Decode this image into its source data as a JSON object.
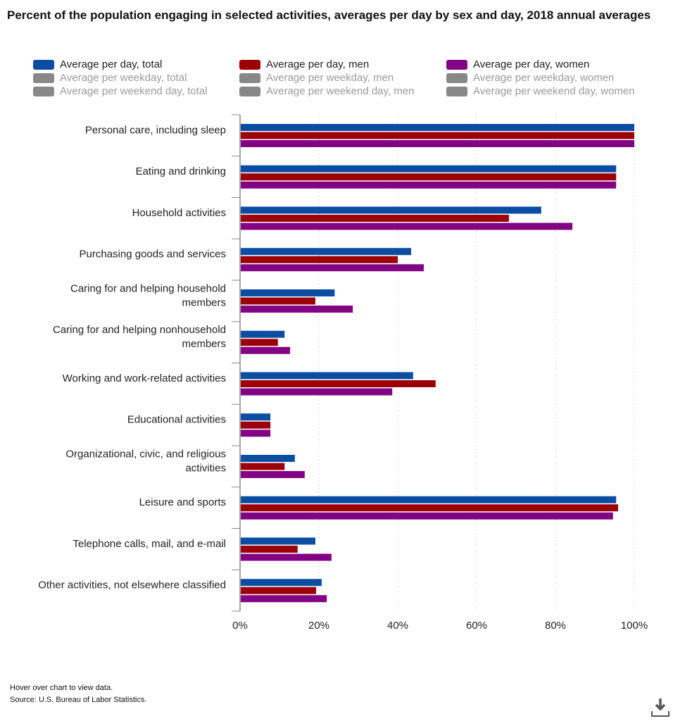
{
  "chart_data": {
    "type": "bar",
    "orientation": "horizontal",
    "title": "Percent of the population engaging in selected activities, averages per day by sex and day, 2018 annual averages",
    "categories": [
      "Personal care, including sleep",
      "Eating and drinking",
      "Household activities",
      "Purchasing goods and services",
      "Caring for and helping household members",
      "Caring for and helping nonhousehold members",
      "Working and work-related activities",
      "Educational activities",
      "Organizational, civic, and religious activities",
      "Leisure and sports",
      "Telephone calls, mail, and e-mail",
      "Other activities, not elsewhere classified"
    ],
    "category_lines": [
      [
        "Personal care, including sleep"
      ],
      [
        "Eating and drinking"
      ],
      [
        "Household activities"
      ],
      [
        "Purchasing goods and services"
      ],
      [
        "Caring for and helping household",
        "members"
      ],
      [
        "Caring for and helping nonhousehold",
        "members"
      ],
      [
        "Working and work-related activities"
      ],
      [
        "Educational activities"
      ],
      [
        "Organizational, civic, and religious",
        "activities"
      ],
      [
        "Leisure and sports"
      ],
      [
        "Telephone calls, mail, and e-mail"
      ],
      [
        "Other activities, not elsewhere classified"
      ]
    ],
    "series": [
      {
        "name": "Average per day, total",
        "color": "#0b4da2",
        "values": [
          100,
          95.4,
          76.4,
          43.4,
          24.0,
          11.3,
          43.9,
          7.7,
          13.9,
          95.4,
          19.1,
          20.7
        ]
      },
      {
        "name": "Average per day, men",
        "color": "#9b0008",
        "values": [
          100,
          95.4,
          68.2,
          40.0,
          19.1,
          9.6,
          49.6,
          7.7,
          11.3,
          95.9,
          14.6,
          19.3
        ]
      },
      {
        "name": "Average per day, women",
        "color": "#820483",
        "values": [
          100,
          95.4,
          84.3,
          46.6,
          28.6,
          12.7,
          38.6,
          7.7,
          16.4,
          94.6,
          23.2,
          22.0
        ]
      }
    ],
    "hidden_series": [
      "Average per weekday, total",
      "Average per weekend day, total",
      "Average per weekday, men",
      "Average per weekend day, men",
      "Average per weekday, women",
      "Average per weekend day, women"
    ],
    "hidden_color": "#888888",
    "xlim": [
      0,
      100
    ],
    "xticks": [
      "0%",
      "20%",
      "40%",
      "60%",
      "80%",
      "100%"
    ],
    "grid": true,
    "legend_position": "top"
  },
  "footer": {
    "hint": "Hover over chart to view data.",
    "source": "Source: U.S. Bureau of Labor Statistics."
  },
  "icons": {
    "download": "download-icon"
  }
}
